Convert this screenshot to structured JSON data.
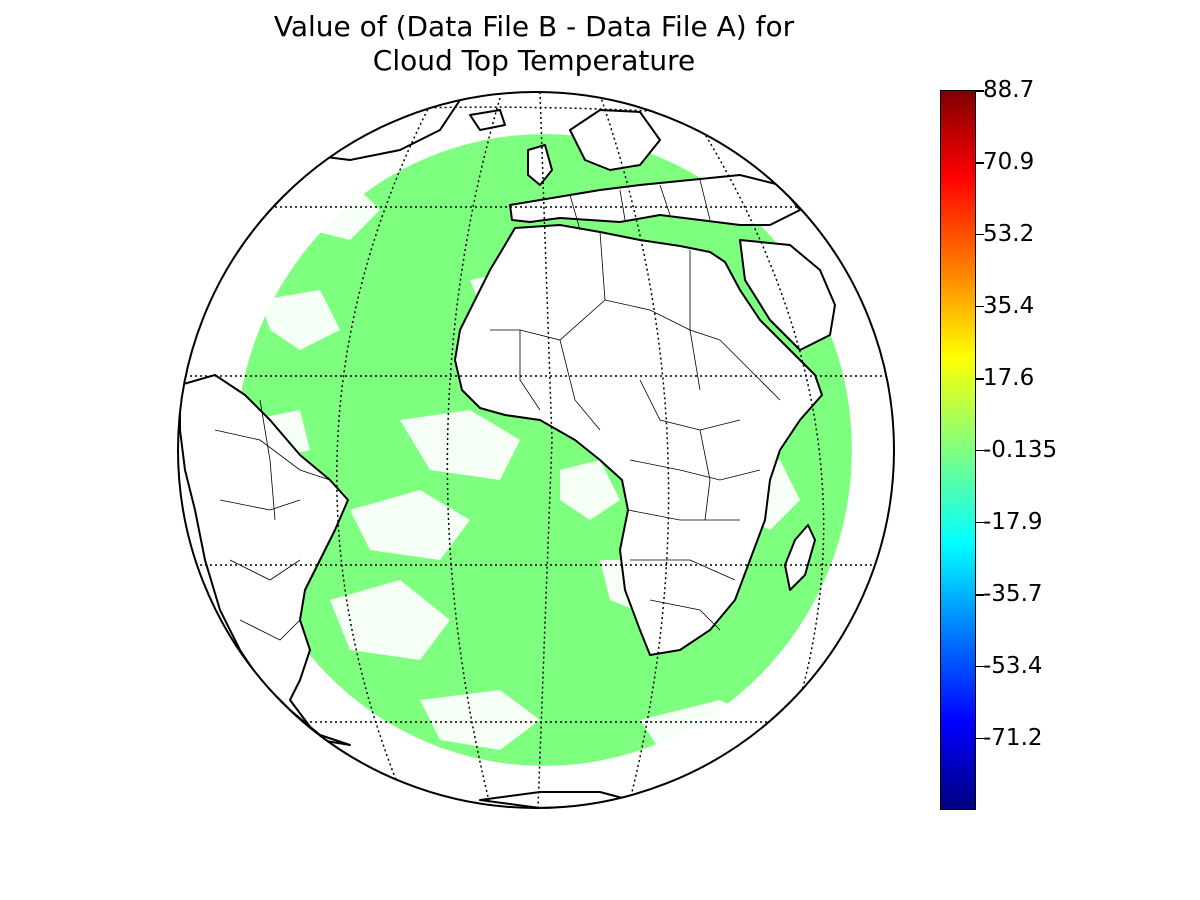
{
  "title_line1": "Value of (Data File B - Data File A) for",
  "title_line2": "Cloud Top Temperature",
  "colors": {
    "difference_fill": "#7fff7f",
    "land_fill": "#ffffff",
    "coastline": "#000000"
  },
  "map": {
    "projection": "orthographic",
    "features": [
      "coastlines",
      "country-borders",
      "graticule-dotted",
      "difference-field"
    ]
  },
  "colorbar": {
    "colormap": "jet",
    "min": -89.0,
    "max": 88.7,
    "tick_labels": [
      "88.7",
      "70.9",
      "53.2",
      "35.4",
      "17.6",
      "-0.135",
      "-17.9",
      "-35.7",
      "-53.4",
      "-71.2"
    ],
    "tick_values": [
      88.7,
      70.9,
      53.2,
      35.4,
      17.6,
      -0.135,
      -17.9,
      -35.7,
      -53.4,
      -71.2
    ]
  }
}
